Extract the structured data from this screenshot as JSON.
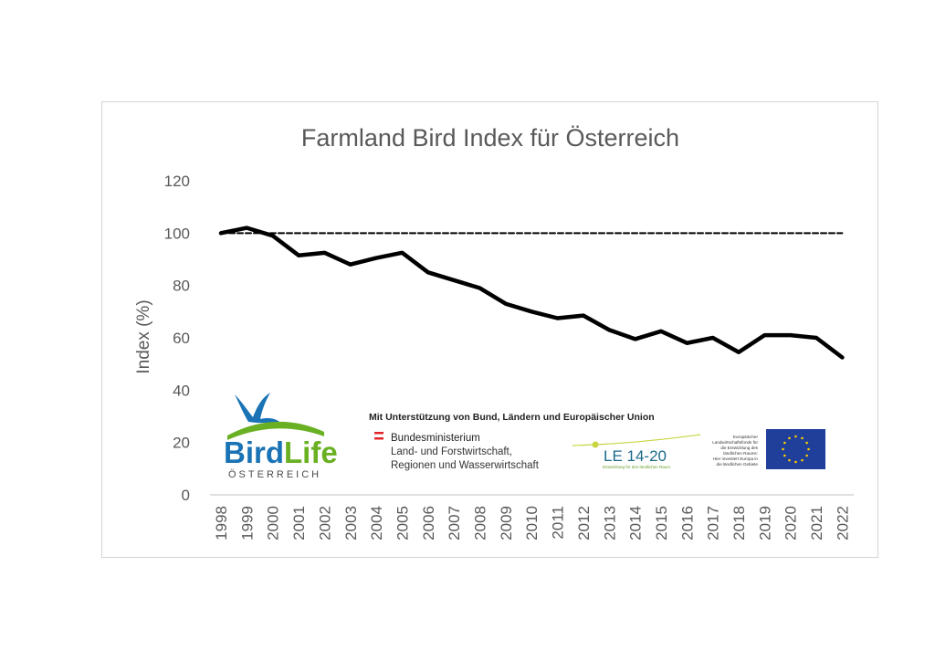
{
  "chart_data": {
    "type": "line",
    "title": "Farmland Bird Index für Österreich",
    "ylabel": "Index (%)",
    "xlabel": "",
    "ylim": [
      0,
      120
    ],
    "yticks": [
      0,
      20,
      40,
      60,
      80,
      100,
      120
    ],
    "x": [
      "1998",
      "1999",
      "2000",
      "2001",
      "2002",
      "2003",
      "2004",
      "2005",
      "2006",
      "2007",
      "2008",
      "2009",
      "2010",
      "2011",
      "2012",
      "2013",
      "2014",
      "2015",
      "2016",
      "2017",
      "2018",
      "2019",
      "2020",
      "2021",
      "2022"
    ],
    "series": [
      {
        "values": [
          100,
          102,
          99,
          91.5,
          92.5,
          88,
          90.5,
          92.5,
          85,
          82,
          79,
          73,
          70,
          67.5,
          68.5,
          63,
          59.5,
          62.5,
          58,
          60,
          54.5,
          61,
          61,
          60,
          52.5
        ],
        "color": "#000000",
        "style": "solid"
      },
      {
        "values": [
          100,
          100,
          100,
          100,
          100,
          100,
          100,
          100,
          100,
          100,
          100,
          100,
          100,
          100,
          100,
          100,
          100,
          100,
          100,
          100,
          100,
          100,
          100,
          100,
          100
        ],
        "color": "#000000",
        "style": "dashed"
      }
    ],
    "grid": false,
    "legend": "none"
  },
  "logos": {
    "birdlife_word_bird": "Bird",
    "birdlife_word_life": "Life",
    "birdlife_country": "ÖSTERREICH",
    "support_text": "Mit Unterstützung von Bund, Ländern und Europäischer Union",
    "ministry_line1": "Bundesministerium",
    "ministry_line2": "Land- und Forstwirtschaft,",
    "ministry_line3": "Regionen und Wasserwirtschaft",
    "le_text": "LE 14-20",
    "le_subtext": "Entwicklung für den ländlichen Raum",
    "eu_text_lines": [
      "Europäischer",
      "Landwirtschaftsfonds für",
      "die Entwicklung des",
      "ländlichen Raums:",
      "Hier investiert Europa in",
      "die ländlichen Gebiete"
    ],
    "colors": {
      "birdlife_blue": "#1a73b5",
      "birdlife_green": "#6ab023",
      "eu_blue": "#1f3f9a",
      "eu_star": "#ffcc00",
      "austria_red": "#e3242b"
    }
  }
}
